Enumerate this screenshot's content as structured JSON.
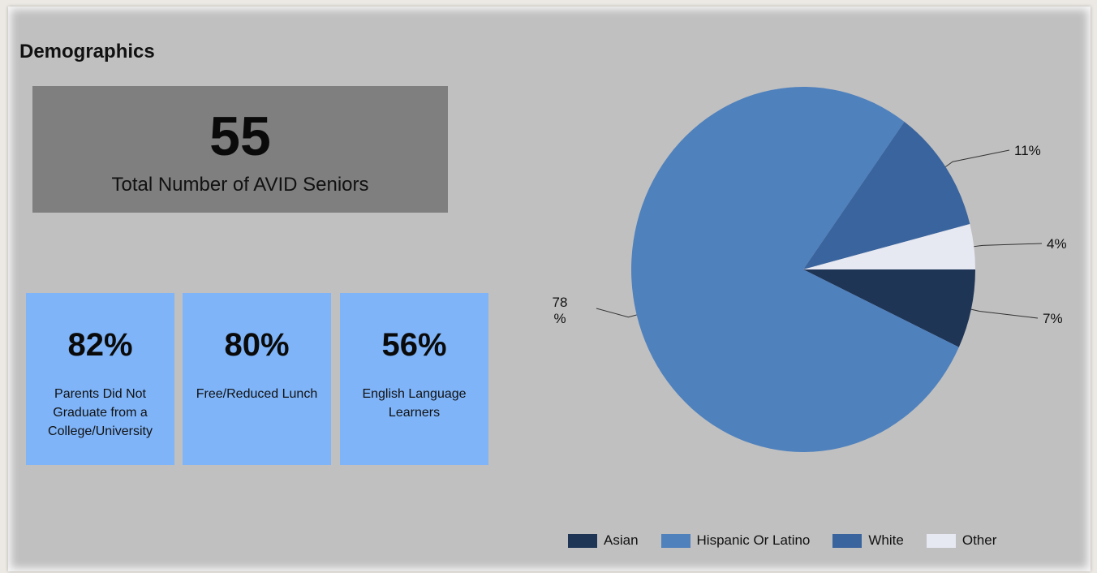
{
  "title": "Demographics",
  "total": {
    "value": "55",
    "label": "Total Number of AVID Seniors"
  },
  "stats": [
    {
      "value": "82%",
      "label": "Parents Did Not Graduate from a College/University"
    },
    {
      "value": "80%",
      "label": "Free/Reduced Lunch"
    },
    {
      "value": "56%",
      "label": "English Language Learners"
    }
  ],
  "colors": {
    "background": "#c0c0c0",
    "total_box": "#7f7f7f",
    "stat_box": "#7fb4f8"
  },
  "chart_data": {
    "type": "pie",
    "categories": [
      "Asian",
      "Hispanic Or Latino",
      "White",
      "Other"
    ],
    "values": [
      7,
      78,
      11,
      4
    ],
    "data_labels": [
      "7%",
      "78 %",
      "11%",
      "4%"
    ],
    "colors": [
      "#1f3556",
      "#4f81bd",
      "#3a649d",
      "#e6e8f2"
    ],
    "start": "3 o'clock, clockwise",
    "legend_position": "bottom-right",
    "title": "",
    "xlabel": "",
    "ylabel": ""
  }
}
